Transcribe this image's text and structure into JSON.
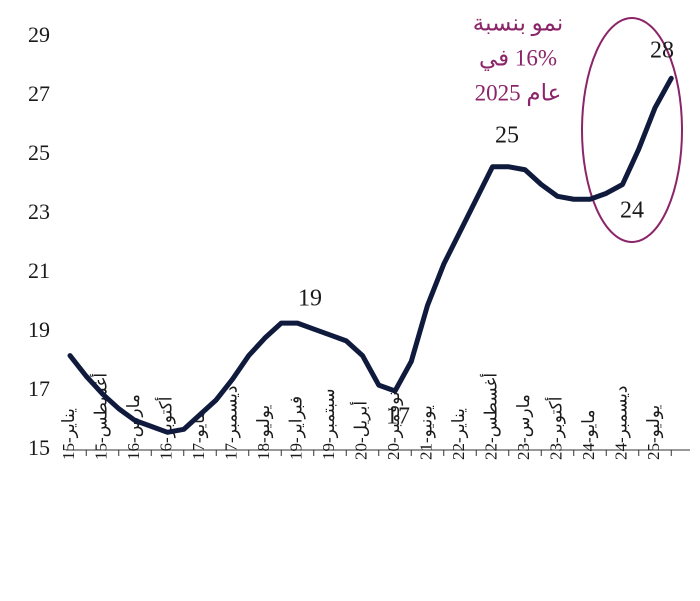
{
  "chart_data": {
    "type": "line",
    "categories": [
      "يناير-15",
      null,
      "أغسطس-15",
      null,
      "مارس-16",
      null,
      "أكتوبر-16",
      null,
      "مايو-17",
      null,
      "ديسمبر-17",
      null,
      "يوليو-18",
      null,
      "فبراير-19",
      null,
      "سبتمبر-19",
      null,
      "أبريل-20",
      null,
      "نوفمبر-20",
      null,
      "يونيو-21",
      null,
      "يناير-22",
      null,
      "أغسطس-22",
      null,
      "مارس-23",
      null,
      "أكتوبر-23",
      null,
      "مايو-24",
      null,
      "ديسمبر-24",
      null,
      "يوليو-25",
      null
    ],
    "series": [
      {
        "color": "#0f1a3d",
        "values": [
          18.2,
          17.5,
          16.9,
          16.4,
          16.0,
          15.8,
          15.6,
          15.7,
          16.2,
          16.7,
          17.4,
          18.2,
          18.8,
          19.3,
          19.3,
          19.1,
          18.9,
          18.7,
          18.2,
          17.2,
          17.0,
          18.0,
          19.9,
          21.3,
          22.4,
          23.5,
          24.6,
          24.6,
          24.5,
          24.0,
          23.6,
          23.5,
          23.5,
          23.7,
          24.0,
          25.2,
          26.6,
          27.6
        ]
      }
    ],
    "ylim": [
      15,
      29
    ],
    "yticks": [
      15,
      17,
      19,
      21,
      23,
      25,
      27,
      29
    ],
    "annotations": [
      "19",
      "17",
      "25",
      "24",
      "28"
    ],
    "note": [
      "نمو بنسبة",
      "16% في",
      "عام 2025"
    ],
    "note_color": "#8b2468"
  }
}
